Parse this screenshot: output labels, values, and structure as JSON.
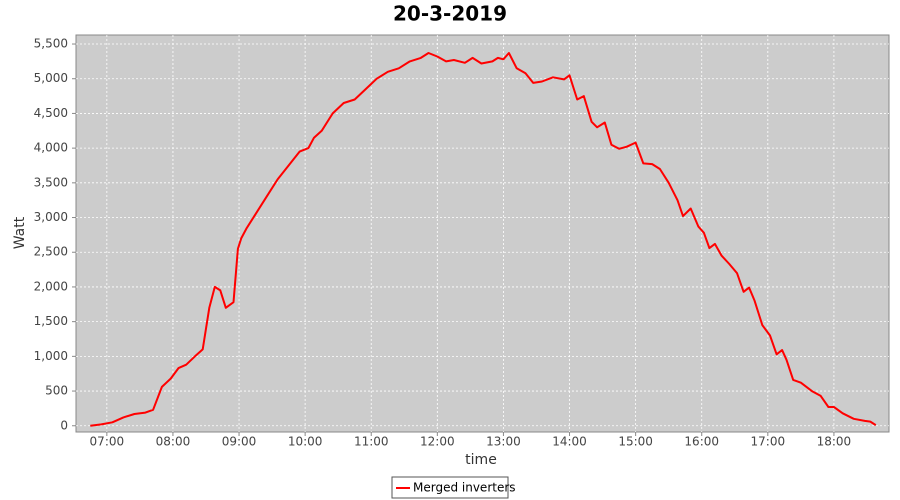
{
  "chart_data": {
    "type": "line",
    "title": "20-3-2019",
    "x_label": "time",
    "y_label": "Watt",
    "x": [
      "06:45",
      "06:55",
      "07:05",
      "07:15",
      "07:25",
      "07:35",
      "07:42",
      "07:50",
      "07:58",
      "08:05",
      "08:12",
      "08:20",
      "08:27",
      "08:33",
      "08:38",
      "08:43",
      "08:48",
      "08:55",
      "08:59",
      "09:02",
      "09:07",
      "09:15",
      "09:25",
      "09:35",
      "09:45",
      "09:55",
      "10:03",
      "10:08",
      "10:15",
      "10:25",
      "10:35",
      "10:45",
      "10:55",
      "11:05",
      "11:15",
      "11:25",
      "11:35",
      "11:45",
      "11:52",
      "12:00",
      "12:08",
      "12:15",
      "12:25",
      "12:32",
      "12:40",
      "12:50",
      "12:55",
      "13:00",
      "13:05",
      "13:12",
      "13:20",
      "13:27",
      "13:35",
      "13:45",
      "13:55",
      "14:00",
      "14:07",
      "14:13",
      "14:20",
      "14:25",
      "14:32",
      "14:38",
      "14:45",
      "14:52",
      "15:00",
      "15:07",
      "15:15",
      "15:22",
      "15:30",
      "15:38",
      "15:43",
      "15:50",
      "15:57",
      "16:02",
      "16:07",
      "16:12",
      "16:18",
      "16:25",
      "16:32",
      "16:38",
      "16:43",
      "16:48",
      "16:55",
      "17:02",
      "17:08",
      "17:13",
      "17:17",
      "17:23",
      "17:30",
      "17:40",
      "17:48",
      "17:55",
      "18:00",
      "18:08",
      "18:18",
      "18:28",
      "18:33",
      "18:38"
    ],
    "series": [
      {
        "name": "Merged inverters",
        "color": "#ff0000",
        "values": [
          0,
          20,
          50,
          120,
          170,
          190,
          230,
          560,
          680,
          830,
          880,
          1000,
          1100,
          1700,
          2000,
          1950,
          1700,
          1780,
          2550,
          2700,
          2850,
          3050,
          3300,
          3550,
          3750,
          3950,
          4000,
          4150,
          4250,
          4500,
          4650,
          4700,
          4850,
          5000,
          5100,
          5150,
          5250,
          5300,
          5370,
          5320,
          5250,
          5270,
          5230,
          5300,
          5220,
          5250,
          5300,
          5280,
          5370,
          5150,
          5080,
          4940,
          4960,
          5020,
          4990,
          5050,
          4700,
          4750,
          4380,
          4300,
          4370,
          4050,
          3990,
          4020,
          4080,
          3780,
          3770,
          3700,
          3500,
          3250,
          3020,
          3130,
          2870,
          2780,
          2560,
          2620,
          2450,
          2330,
          2200,
          1930,
          1990,
          1800,
          1450,
          1300,
          1030,
          1090,
          950,
          660,
          620,
          500,
          430,
          270,
          270,
          180,
          100,
          70,
          60,
          10
        ]
      }
    ],
    "xlim": [
      "06:32",
      "18:50"
    ],
    "xticks": [
      "07:00",
      "08:00",
      "09:00",
      "10:00",
      "11:00",
      "12:00",
      "13:00",
      "14:00",
      "15:00",
      "16:00",
      "17:00",
      "18:00"
    ],
    "ylim": [
      -90,
      5630
    ],
    "yticks": [
      0,
      500,
      {
        "value": 1000,
        "label": "1,000"
      },
      {
        "value": 1500,
        "label": "1,500"
      },
      {
        "value": 2000,
        "label": "2,000"
      },
      {
        "value": 2500,
        "label": "2,500"
      },
      {
        "value": 3000,
        "label": "3,000"
      },
      {
        "value": 3500,
        "label": "3,500"
      },
      {
        "value": 4000,
        "label": "4,000"
      },
      {
        "value": 4500,
        "label": "4,500"
      },
      {
        "value": 5000,
        "label": "5,000"
      },
      {
        "value": 5500,
        "label": "5,500"
      }
    ],
    "grid": true
  }
}
